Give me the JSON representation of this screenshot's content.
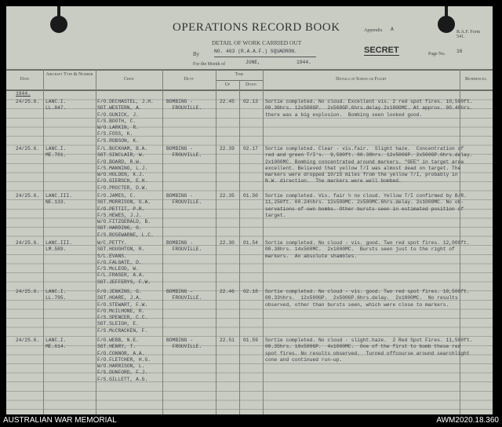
{
  "header": {
    "title": "OPERATIONS RECORD BOOK",
    "subtitle": "DETAIL OF WORK CARRIED OUT",
    "by_label": "By",
    "by_value": "NO. 463 (R.A.A.F.) SQUADRON.",
    "month_label": "For the Month of",
    "month_value": "JUNE,",
    "year_value": "1944.",
    "appendix_label": "Appendix",
    "appendix_value": "A",
    "form": "R.A.F. Form 541.",
    "secret": "SECRET",
    "page_label": "Page No.",
    "page_value": "16"
  },
  "columns": {
    "date": "Date",
    "aircraft": "Aircraft Type & Number",
    "crew": "Crew",
    "duty": "Duty",
    "time": "Time",
    "up": "Up",
    "down": "Down",
    "details": "Details of Sortie or Flight",
    "references": "References."
  },
  "year_row": "1944.",
  "entries": [
    {
      "date": "24/25.6.",
      "aircraft": "LANC.I.\nLL.847.",
      "crew": "F/O.DECHASTEL, J.H.\nSGT.WESTERN, A.\nF/O.GUNICK, J.\nF/S.BOOTH, C.\nW/O.LARKIN, R.\nF/S.FOSS, K.\nF/S.ROBSON, K.",
      "duty": "BOMBING -\n  FROUVILLE.",
      "up": "22.45",
      "down": "02.13",
      "details": "Sortie completed. No cloud. Excellent vis. 2 red spot fires. 10,500ft.\n00.36hrs. 12x500GP.  2x500GP.6hrs.delay.2x1000MC. At approx. 00.40hrs.\nthere was a big explosion.  Bombing seen looked good."
    },
    {
      "date": "24/25.6.",
      "aircraft": "LANC.I.\nME.701.",
      "crew": "F/L.BUCKHAM, B.A.\nSGT.SINCLAIR, W.\nF/O.BOARD, R.W.\nF/S.MANNING, L.J.\nW/O.HOLDEN, K.J.\nF/O.GIERSCH, E.H.\nF/O.PROCTER, D.W.",
      "duty": "BOMBING -\n  FROUVILLE.",
      "up": "22.39",
      "down": "02.17",
      "details": "Sortie completed. Clear - vis.fair.  Slight haze.  Concentration of\nred and green T/I's.  9,500ft. 00.38hrs. 12x500GP. 2x500GP.6hrs.delay.\n2x1000MC. Bombing concentrated around markers. \"GEE\" in target area\nexcellent. Believed that yellow T/I was almost dead on target. The\nmarkers were dropped 10/15 miles from the yellow T/I, probably in\nN.W. direction.  The markers were well bombed."
    },
    {
      "date": "24/25.6.",
      "aircraft": "LANC.III.\nNE.133.",
      "crew": "F/O.JAMES, C.\nSGT.MORRISON, G.A.\nF/O.PETTIT, P.R.\nF/S.HEWES, J.J.\nW/O.FITZGERALD, B.\nSGT.HARDING, G.\nF/S.ROSEWARNE, L.C.",
      "duty": "BOMBING -\n  FROUVILLE.",
      "up": "22.35",
      "down": "01.50",
      "details": "Sortie completed. Vis. fair ½ no cloud. Yellow T/I confirmed by B/R.\n11,250ft. 00.24½hrs. 12x500MC. 2x500MC.6hrs.delay. 2x1000MC. No ob-\nservations of own bombs. Other bursts seen in estimated position of\ntarget."
    },
    {
      "date": "24/25.6.",
      "aircraft": "LANC.III.\nLM.589.",
      "crew": "W/C.PETTY.\nSGT.HOUGHTON, R.\nS/L.EVANS.\nF/O.FALGATE, D.\nF/S.McLEOD, W.\nF/L.FRASER, A.A.\nSGT.JEFFERYS, F.W.",
      "duty": "BOMBING -\n  FROUVILLE.",
      "up": "22.30",
      "down": "01.54",
      "details": "Sortie completed. No cloud - vis. good. Two red spot fires. 12,000ft.\n00.38hrs. 14x500MC.  2x1000MC.  Bursts seen just to the right of\nmarkers.  An absolute shambles."
    },
    {
      "date": "24/25.6.",
      "aircraft": "LANC.I.\nLL.795.",
      "crew": "F/O.JENKINS, G.\nSGT.HOARE, J.A.\nF/O.STEWART, F.W.\nF/O.McILHONE, R.\nF/S.SPENCER, C.C.\nSGT.SLEIGH, E.\nF/S.McCRACKEN, F.",
      "duty": "BOMBING -\n  FROUVILLE.",
      "up": "22.46",
      "down": "02.18",
      "details": "Sortie completed. No cloud - vis. good. Two red spot fires. 10,500ft.\n00.33½hrs.  12x500GP.  2x500GP.6hrs.delay.  2x1000MC.  No results\nobserved, other than bursts seen, which were close to markers."
    },
    {
      "date": "24/25.6.",
      "aircraft": "LANC.I.\nME.614.",
      "crew": "F/O.WEBB, N.E.\nSGT.HENRY, T.\nF/O.CONNOR, A.A.\nF/O.FLETCHER, H.G.\nW/O.HARRISON, L.\nF/S.DUNFORD, F.J.\nF/S.GILLETT, A.G.",
      "duty": "BOMBING -\n  FROUVILLE.",
      "up": "22.51",
      "down": "01.59",
      "details": "Sortie completed. No cloud - slight.haze.  2 Red Spot Fires. 11,500ft.\n00.35hrs. 10x500GP.  4x1000MC.  One of the first to bomb these red\nspot fires. No results observed.  Turned offcourse around searchlight\ncone and continued run-up."
    }
  ],
  "footer": {
    "left": "AUSTRALIAN WAR MEMORIAL",
    "right": "AWM2020.18.360"
  }
}
